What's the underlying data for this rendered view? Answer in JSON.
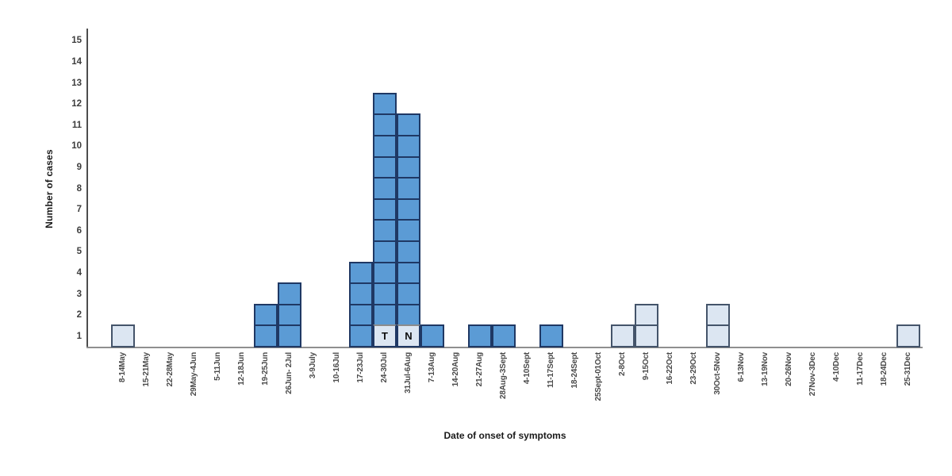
{
  "chart_data": {
    "type": "bar",
    "title": "",
    "xlabel": "Date of onset of symptoms",
    "ylabel": "Number of cases",
    "ylim": [
      0,
      15
    ],
    "yticks": [
      1,
      2,
      3,
      4,
      5,
      6,
      7,
      8,
      9,
      10,
      11,
      12,
      13,
      14,
      15
    ],
    "grid": false,
    "legend": false,
    "bar_style_note": "epidemic curve; each stacked square represents one case; two square styles (primary dark blue, secondary light blue); bottom squares of the two tallest bars are light cells labelled T and N",
    "categories": [
      "8-14May",
      "15-21May",
      "22-28May",
      "29May-4Jun",
      "5-11Jun",
      "12-18Jun",
      "19-25Jun",
      "26Jun- 2Jul",
      "3-9July",
      "10-16Jul",
      "17-23Jul",
      "24-30Jul",
      "31Jul-6Aug",
      "7-13Aug",
      "14-20Aug",
      "21-27Aug",
      "28Aug-3Sept",
      "4-10Sept",
      "11-17Sept",
      "18-24Sept",
      "25Sept-01Oct",
      "2-8Oct",
      "9-15Oct",
      "16-22Oct",
      "23-29Oct",
      "30Oct-5Nov",
      "6-13Nov",
      "13-19Nov",
      "20-26Nov",
      "27Nov-3Dec",
      "4-10Dec",
      "11-17Dec",
      "18-24Dec",
      "25-31Dec"
    ],
    "values": [
      1,
      0,
      0,
      0,
      0,
      0,
      2,
      3,
      0,
      0,
      4,
      12,
      11,
      1,
      0,
      1,
      1,
      0,
      1,
      0,
      0,
      1,
      2,
      0,
      0,
      2,
      0,
      0,
      0,
      0,
      0,
      0,
      0,
      1
    ],
    "styles": [
      "light",
      "",
      "",
      "",
      "",
      "",
      "dark",
      "dark",
      "",
      "",
      "dark",
      "dark",
      "dark",
      "dark",
      "",
      "dark",
      "dark",
      "",
      "dark",
      "",
      "",
      "light",
      "light",
      "",
      "",
      "light",
      "",
      "",
      "",
      "",
      "",
      "",
      "",
      "light"
    ],
    "annotations": [
      {
        "category": "24-30Jul",
        "category_index": 11,
        "row_from_bottom": 1,
        "text": "T"
      },
      {
        "category": "31Jul-6Aug",
        "category_index": 12,
        "row_from_bottom": 1,
        "text": "N"
      }
    ],
    "colors": {
      "primary_fill": "#5B9BD5",
      "primary_border": "#1F3864",
      "secondary_fill": "#DCE6F2",
      "secondary_border": "#44546A",
      "annotation_divider": "#8C8C8C",
      "x_axis_line": "#8F8F8F",
      "y_axis_line": "#4D4D4D",
      "text": "#3D3D3D"
    }
  }
}
